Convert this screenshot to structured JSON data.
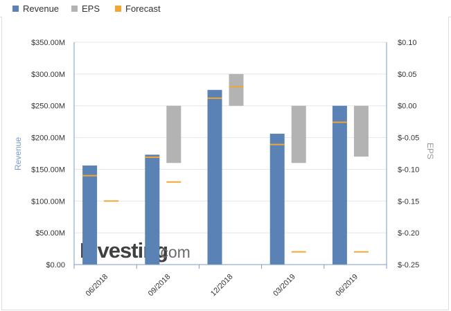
{
  "legend": {
    "revenue_label": "Revenue",
    "eps_label": "EPS",
    "forecast_label": "Forecast"
  },
  "colors": {
    "revenue": "#5b82b4",
    "eps": "#b3b3b3",
    "forecast": "#f3a634",
    "grid": "#e5e5e5",
    "axis": "#7a9cc8",
    "label": "#333333"
  },
  "watermark": {
    "brand": "Investing",
    "suffix": ".com"
  },
  "chart_data": {
    "type": "bar",
    "categories": [
      "06/2018",
      "09/2018",
      "12/2018",
      "03/2019",
      "06/2019"
    ],
    "left_axis": {
      "label": "Revenue",
      "ticks": [
        "$0.00",
        "$50.00M",
        "$100.00M",
        "$150.00M",
        "$200.00M",
        "$250.00M",
        "$300.00M",
        "$350.00M"
      ],
      "range": [
        0,
        350
      ]
    },
    "right_axis": {
      "label": "EPS",
      "ticks": [
        "$-0.25",
        "$-0.20",
        "$-0.15",
        "$-0.10",
        "$-0.05",
        "$0.00",
        "$0.05",
        "$0.10"
      ],
      "range": [
        -0.25,
        0.1
      ]
    },
    "series": [
      {
        "name": "Revenue",
        "axis": "left",
        "values": [
          156,
          173,
          275,
          206,
          250
        ]
      },
      {
        "name": "Revenue Forecast",
        "axis": "left",
        "values": [
          140,
          169,
          262,
          189,
          224
        ]
      },
      {
        "name": "EPS",
        "axis": "right",
        "values": [
          null,
          -0.09,
          0.05,
          -0.09,
          -0.08
        ]
      },
      {
        "name": "EPS Forecast",
        "axis": "right",
        "values": [
          -0.15,
          -0.12,
          0.03,
          -0.23,
          -0.23
        ]
      }
    ],
    "grid": true,
    "legend_position": "top-left"
  }
}
